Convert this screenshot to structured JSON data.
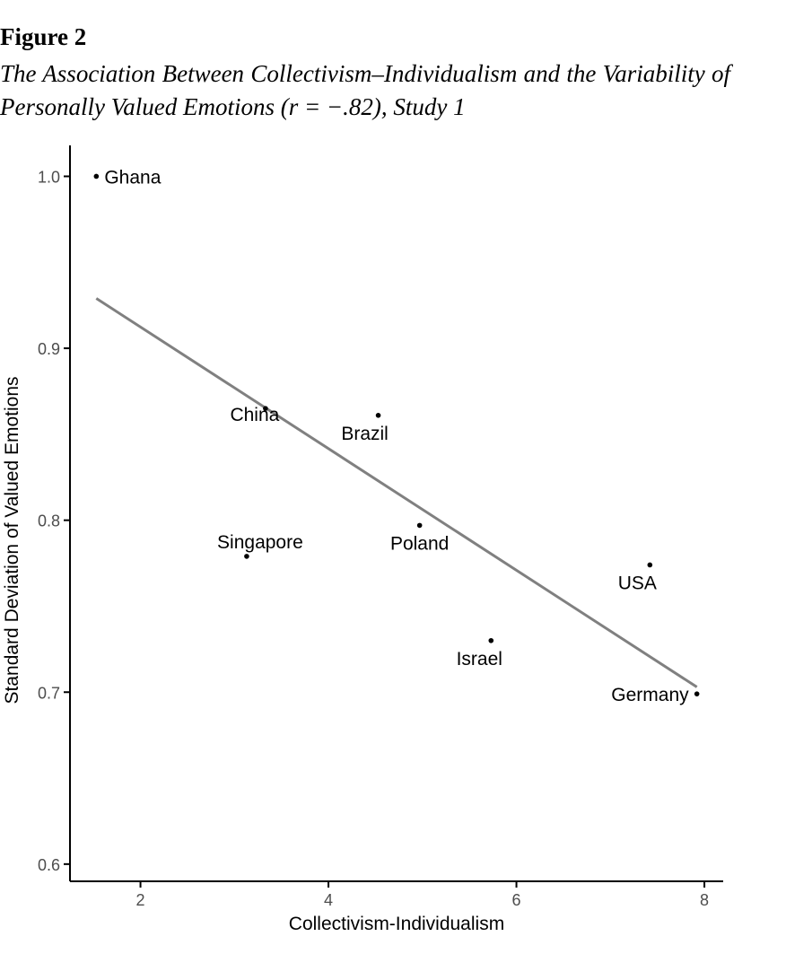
{
  "figure": {
    "label": "Figure 2",
    "caption": "The Association Between Collectivism–Individualism and the Variability of Personally Valued Emotions (r = −.82), Study 1"
  },
  "chart_data": {
    "type": "scatter",
    "title": "",
    "xlabel": "Collectivism-Individualism",
    "ylabel": "Standard Deviation of Valued Emotions",
    "xlim": [
      1.25,
      8.2
    ],
    "ylim": [
      0.59,
      1.018
    ],
    "xticks": [
      2,
      4,
      6,
      8
    ],
    "yticks": [
      0.6,
      0.7,
      0.8,
      0.9,
      1.0
    ],
    "xtick_labels": [
      "2",
      "4",
      "6",
      "8"
    ],
    "ytick_labels": [
      "0.6",
      "0.7",
      "0.8",
      "0.9",
      "1.0"
    ],
    "grid": false,
    "legend": "none",
    "points": [
      {
        "label": "Ghana",
        "x": 1.53,
        "y": 1.0
      },
      {
        "label": "China",
        "x": 3.33,
        "y": 0.865
      },
      {
        "label": "Brazil",
        "x": 4.53,
        "y": 0.861
      },
      {
        "label": "Singapore",
        "x": 3.13,
        "y": 0.779
      },
      {
        "label": "Poland",
        "x": 4.97,
        "y": 0.797
      },
      {
        "label": "USA",
        "x": 7.42,
        "y": 0.774
      },
      {
        "label": "Israel",
        "x": 5.73,
        "y": 0.73
      },
      {
        "label": "Germany",
        "x": 7.92,
        "y": 0.699
      }
    ],
    "fit_line": {
      "x": [
        1.53,
        7.92
      ],
      "y": [
        0.929,
        0.703
      ]
    },
    "colors": {
      "points": "#000000",
      "fit_line": "#808080",
      "axis": "#000000",
      "tick_label": "#4d4d4d"
    }
  }
}
